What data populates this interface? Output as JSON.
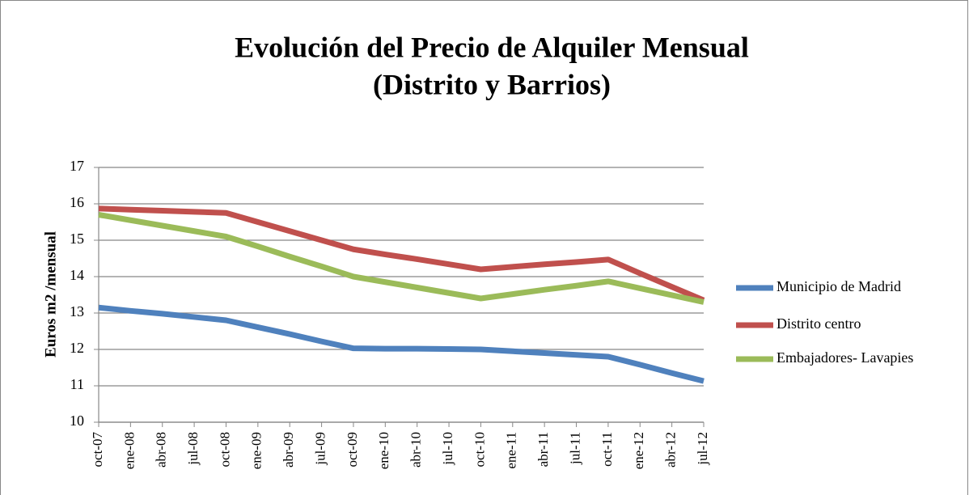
{
  "chart_data": {
    "type": "line",
    "title": [
      "Evolución del Precio de Alquiler Mensual",
      "(Distrito y Barrios)"
    ],
    "y_label": "Euros m2 /mensual",
    "categories": [
      "oct-07",
      "ene-08",
      "abr-08",
      "jul-08",
      "oct-08",
      "ene-09",
      "abr-09",
      "jul-09",
      "oct-09",
      "ene-10",
      "abr-10",
      "jul-10",
      "oct-10",
      "ene-11",
      "abr-11",
      "jul-11",
      "oct-11",
      "ene-12",
      "abr-12",
      "jul-12"
    ],
    "series": [
      {
        "name": "Municipio de Madrid",
        "color": "#4f81bd",
        "values": [
          13.15,
          13.06,
          12.98,
          12.89,
          12.8,
          12.61,
          12.42,
          12.22,
          12.03,
          12.02,
          12.02,
          12.01,
          12.0,
          11.95,
          11.9,
          11.85,
          11.8,
          11.58,
          11.35,
          11.13
        ]
      },
      {
        "name": "Distrito centro",
        "color": "#c0504d",
        "values": [
          15.87,
          15.84,
          15.81,
          15.78,
          15.75,
          15.5,
          15.25,
          15.0,
          14.75,
          14.61,
          14.48,
          14.34,
          14.2,
          14.27,
          14.34,
          14.4,
          14.47,
          14.09,
          13.72,
          13.35
        ]
      },
      {
        "name": "Embajadores- Lavapies",
        "color": "#9bbb59",
        "values": [
          15.7,
          15.55,
          15.4,
          15.25,
          15.1,
          14.83,
          14.55,
          14.28,
          14.0,
          13.85,
          13.7,
          13.55,
          13.4,
          13.52,
          13.64,
          13.75,
          13.87,
          13.68,
          13.49,
          13.3
        ]
      }
    ],
    "ylim": [
      10,
      17
    ],
    "yticks": [
      10,
      11,
      12,
      13,
      14,
      15,
      16,
      17
    ],
    "grid": true,
    "legend": "right"
  }
}
